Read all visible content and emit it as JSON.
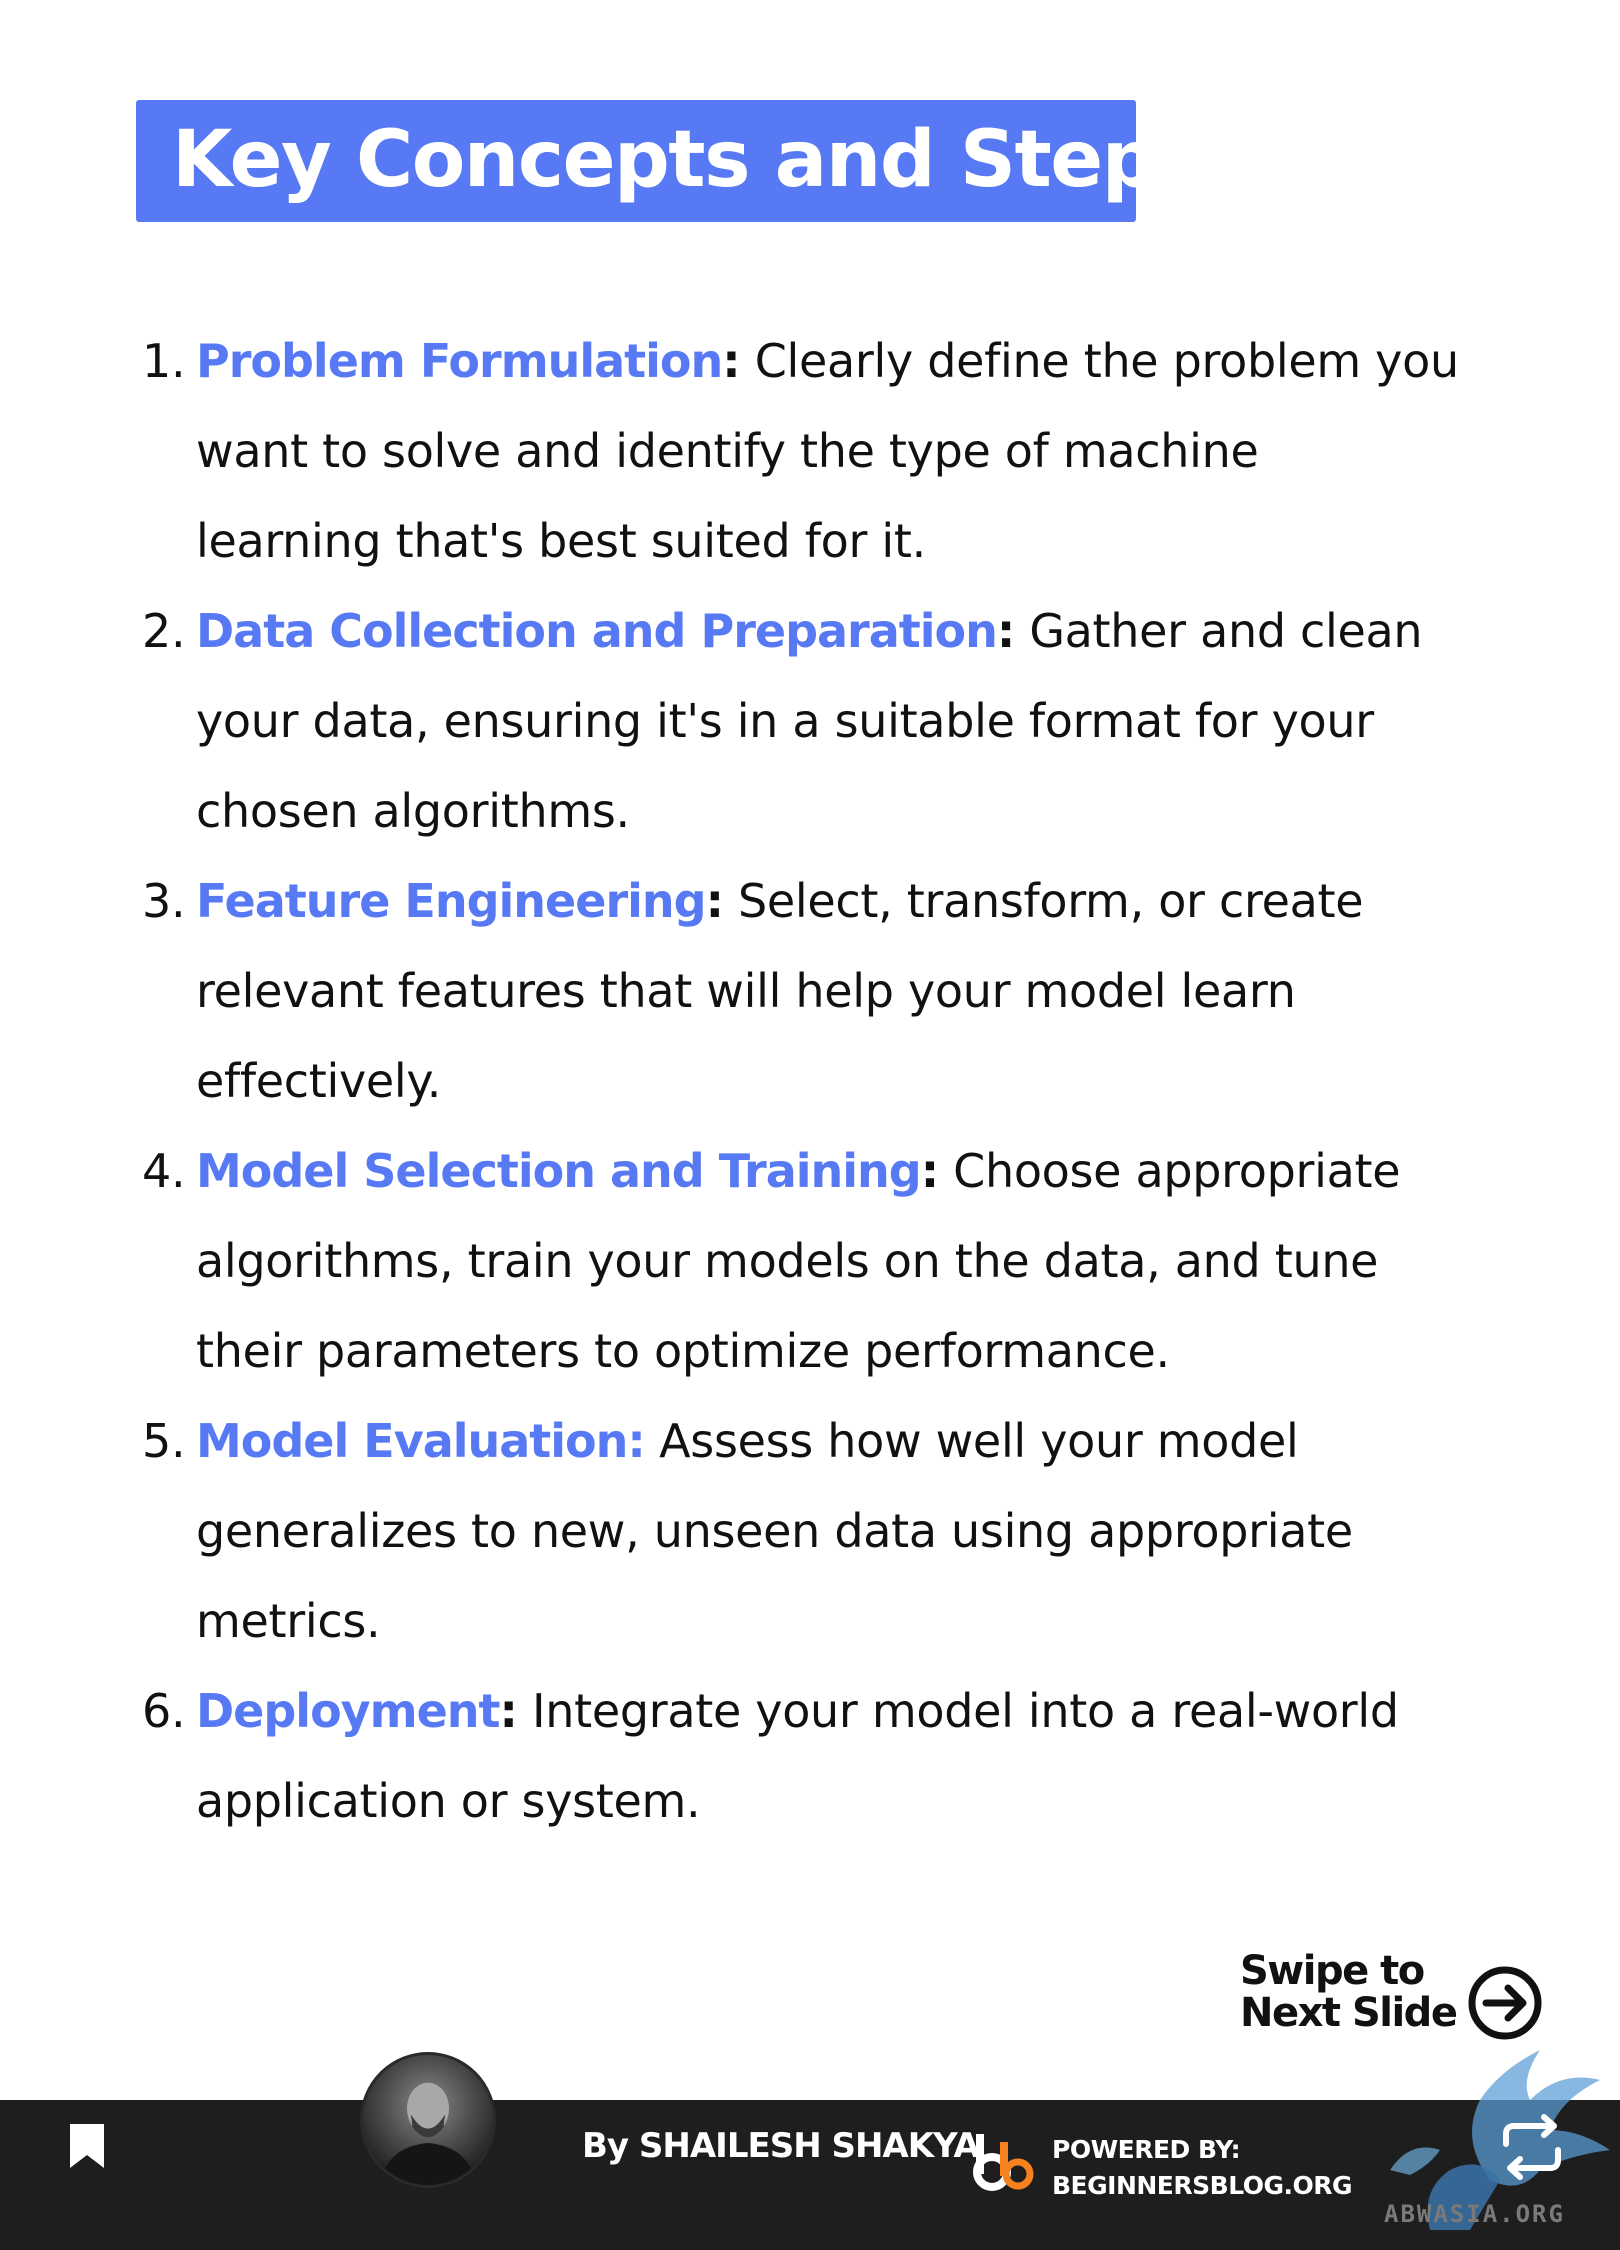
{
  "title": "Key Concepts and Steps:",
  "steps": [
    {
      "number": "1.",
      "term": "Problem Formulation",
      "colon": ":",
      "lines": [
        " Clearly define the problem you",
        "want to solve and identify the type of machine",
        "learning that's best suited for it."
      ]
    },
    {
      "number": "2.",
      "term": "Data Collection and Preparation",
      "colon": ":",
      "lines": [
        " Gather and clean",
        "your data, ensuring it's in a suitable format for your",
        "chosen algorithms."
      ]
    },
    {
      "number": "3.",
      "term": "Feature Engineering",
      "colon": ":",
      "lines": [
        " Select, transform, or create",
        "relevant features that will help your model learn",
        "effectively."
      ]
    },
    {
      "number": "4.",
      "term": "Model Selection and Training",
      "colon": ":",
      "lines": [
        " Choose appropriate",
        "algorithms, train your models on the data, and tune",
        "their parameters to optimize performance."
      ]
    },
    {
      "number": "5.",
      "term": "Model Evaluation:",
      "colon": "",
      "lines": [
        " Assess how well your model",
        "generalizes to new, unseen data using appropriate",
        "metrics."
      ]
    },
    {
      "number": "6.",
      "term": "Deployment",
      "colon": ":",
      "lines": [
        " Integrate your model into a real-world",
        "application or system."
      ]
    }
  ],
  "swipe": {
    "line1": "Swipe to",
    "line2": "Next Slide",
    "icon": "arrow-right-circle-icon"
  },
  "footer": {
    "author": "By SHAILESH SHAKYA",
    "powered_label": "POWERED BY:",
    "powered_site": "BEGINNERSBLOG.ORG",
    "icons": [
      "bookmark-icon",
      "repost-icon",
      "brand-logo"
    ]
  },
  "watermark": "ABWASIA.ORG",
  "colors": {
    "accent": "#5779f4",
    "footer_bg": "#1e1e1e",
    "brand_orange": "#f5821f"
  }
}
